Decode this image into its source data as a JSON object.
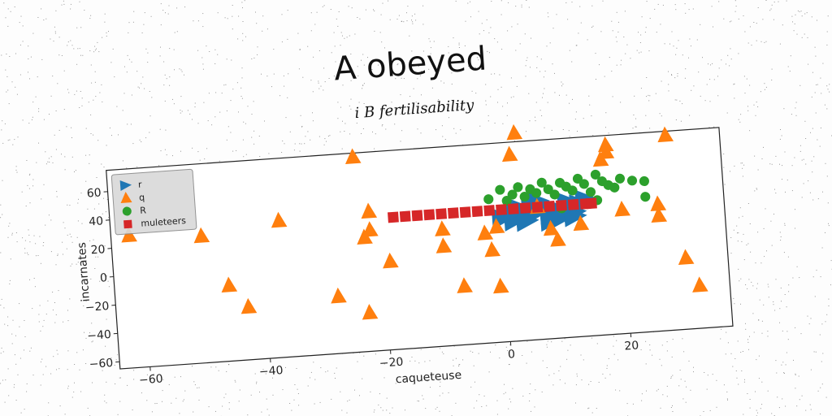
{
  "chart_data": {
    "type": "scatter",
    "title": "A obeyed",
    "subtitle": "i B fertilisability",
    "xlabel": "caqueteuse",
    "ylabel": "incarnates",
    "xlim": [
      -65,
      37
    ],
    "ylim": [
      -65,
      75
    ],
    "x_ticks": [
      -60,
      -40,
      -20,
      0,
      20
    ],
    "y_ticks": [
      -60,
      -40,
      -20,
      0,
      20,
      40,
      60
    ],
    "grid": false,
    "legend_position": "top-left",
    "series": [
      {
        "name": "r",
        "marker": "triangle-right",
        "color": "#1f77b4",
        "points": [
          [
            0,
            22
          ],
          [
            2,
            20
          ],
          [
            4,
            22
          ],
          [
            6,
            25
          ],
          [
            8,
            23
          ],
          [
            3,
            28
          ],
          [
            5,
            30
          ],
          [
            7,
            27
          ],
          [
            9,
            22
          ],
          [
            10,
            24
          ],
          [
            12,
            23
          ],
          [
            13,
            28
          ],
          [
            11,
            30
          ],
          [
            6,
            32
          ],
          [
            4,
            19
          ],
          [
            8,
            18
          ],
          [
            10,
            20
          ],
          [
            12,
            20
          ],
          [
            2,
            26
          ],
          [
            14,
            31
          ]
        ]
      },
      {
        "name": "q",
        "marker": "triangle-up",
        "color": "#ff7f0e",
        "points": [
          [
            -62,
            28
          ],
          [
            -50,
            24
          ],
          [
            -46,
            -12
          ],
          [
            -43,
            -28
          ],
          [
            -37,
            31
          ],
          [
            -28,
            -25
          ],
          [
            -24,
            72
          ],
          [
            -23,
            -38
          ],
          [
            -22,
            33
          ],
          [
            -22,
            20
          ],
          [
            -23,
            15
          ],
          [
            -19,
            -3
          ],
          [
            -10,
            17
          ],
          [
            -10,
            5
          ],
          [
            -7,
            -24
          ],
          [
            -3,
            12
          ],
          [
            -2,
            0
          ],
          [
            -1,
            -26
          ],
          [
            -1,
            16
          ],
          [
            2,
            66
          ],
          [
            3,
            81
          ],
          [
            6,
            28
          ],
          [
            8,
            12
          ],
          [
            9,
            4
          ],
          [
            13,
            14
          ],
          [
            17,
            58
          ],
          [
            18,
            63
          ],
          [
            18,
            68
          ],
          [
            20,
            22
          ],
          [
            26,
            24
          ],
          [
            26,
            16
          ],
          [
            28,
            72
          ],
          [
            30,
            -15
          ],
          [
            32,
            -35
          ]
        ]
      },
      {
        "name": "R",
        "marker": "circle",
        "color": "#2ca02c",
        "points": [
          [
            -2,
            36
          ],
          [
            0,
            42
          ],
          [
            1,
            34
          ],
          [
            2,
            38
          ],
          [
            3,
            43
          ],
          [
            4,
            36
          ],
          [
            5,
            41
          ],
          [
            6,
            38
          ],
          [
            7,
            45
          ],
          [
            8,
            40
          ],
          [
            9,
            36
          ],
          [
            10,
            44
          ],
          [
            11,
            41
          ],
          [
            12,
            38
          ],
          [
            13,
            46
          ],
          [
            14,
            42
          ],
          [
            15,
            36
          ],
          [
            16,
            48
          ],
          [
            17,
            43
          ],
          [
            18,
            40
          ],
          [
            19,
            38
          ],
          [
            20,
            44
          ],
          [
            22,
            42
          ],
          [
            24,
            41
          ],
          [
            24,
            30
          ],
          [
            16,
            30
          ],
          [
            10,
            26
          ]
        ]
      },
      {
        "name": "muleteers",
        "marker": "square",
        "color": "#d62728",
        "points": [
          [
            -18,
            28
          ],
          [
            -16,
            28
          ],
          [
            -14,
            28
          ],
          [
            -12,
            28
          ],
          [
            -10,
            28
          ],
          [
            -8,
            28
          ],
          [
            -6,
            28
          ],
          [
            -4,
            28
          ],
          [
            -2,
            28
          ],
          [
            0,
            28
          ],
          [
            2,
            28
          ],
          [
            4,
            28
          ],
          [
            6,
            28
          ],
          [
            8,
            28
          ],
          [
            10,
            28
          ],
          [
            12,
            28
          ],
          [
            14,
            28
          ],
          [
            15,
            28
          ]
        ]
      }
    ]
  }
}
